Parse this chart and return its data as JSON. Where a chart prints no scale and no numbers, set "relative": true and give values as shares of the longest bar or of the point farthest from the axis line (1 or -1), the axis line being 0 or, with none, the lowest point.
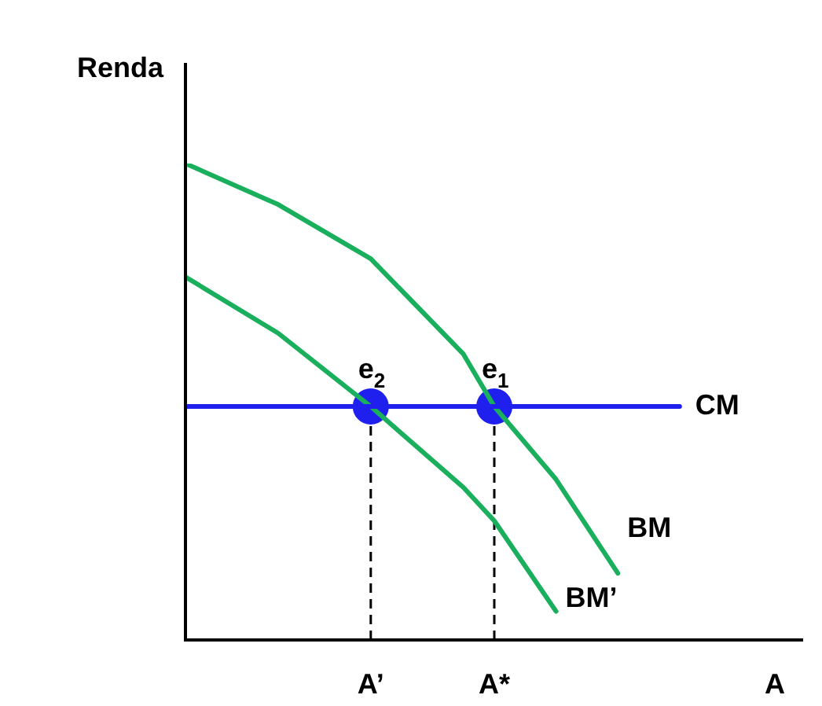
{
  "chart_data": {
    "type": "line",
    "relative": true,
    "ylabel": "Renda",
    "xlabel": "A",
    "categories": [
      null,
      null,
      null,
      null,
      null,
      null,
      "A’",
      null,
      null,
      null,
      "A*",
      null,
      null,
      null,
      null,
      null,
      null,
      null,
      null,
      null,
      null
    ],
    "legend": false,
    "marker": "none",
    "series": [
      {
        "name": "CM",
        "color": "#2020ee",
        "values": [
          0.49,
          0.49,
          0.49,
          0.49,
          0.49,
          0.49,
          0.49,
          0.49,
          0.49,
          0.49,
          0.49,
          0.49,
          0.49,
          0.49,
          0.49,
          0.49,
          0.49,
          null,
          null,
          null,
          null
        ]
      },
      {
        "name": "BM",
        "color": "#1aaf5d",
        "values": [
          1,
          null,
          null,
          0.914,
          null,
          null,
          0.8,
          null,
          null,
          0.6,
          0.49,
          null,
          0.337,
          null,
          0.14,
          null,
          null,
          null,
          null,
          null,
          null
        ]
      },
      {
        "name": "BM’",
        "color": "#1aaf5d",
        "values": [
          0.762,
          null,
          null,
          0.644,
          null,
          null,
          0.49,
          null,
          null,
          0.32,
          0.25,
          null,
          0.06,
          null,
          null,
          null,
          null,
          null,
          null,
          null,
          null
        ]
      },
      {
        "type": "scatter",
        "marker": "circle",
        "line_style": "dashed",
        "color": "#2020ee",
        "x": [
          "A’",
          "A*"
        ],
        "values": [
          0.49,
          0.49
        ]
      }
    ],
    "annotations": [
      {
        "text": "e$_{2}$",
        "x": "A’",
        "y": 0.49
      },
      {
        "text": "e$_{1}$",
        "x": "A*",
        "y": 0.49
      }
    ]
  }
}
